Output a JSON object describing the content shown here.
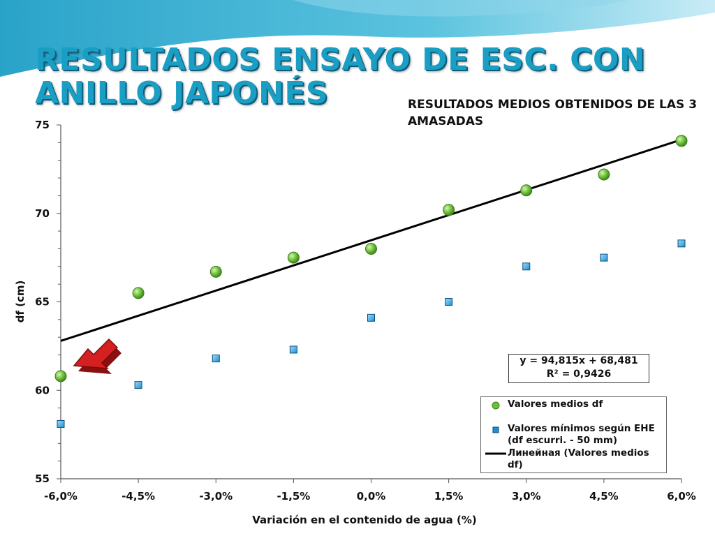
{
  "slide": {
    "title": "RESULTADOS ENSAYO DE ESC. CON ANILLO JAPONÉS",
    "subtitle": "RESULTADOS MEDIOS OBTENIDOS DE LAS 3 AMASADAS"
  },
  "colors": {
    "title": "#1a9ec4",
    "series_means": "#6cbf3a",
    "series_min": "#1e8fd0",
    "trendline": "#000000",
    "arrow": "#c01818"
  },
  "chart_data": {
    "type": "scatter",
    "xlabel": "Variación en el contenido de agua (%)",
    "ylabel": "df (cm)",
    "x": [
      -0.06,
      -0.045,
      -0.03,
      -0.015,
      0.0,
      0.015,
      0.03,
      0.045,
      0.06
    ],
    "x_tick_labels": [
      "-6,0%",
      "-4,5%",
      "-3,0%",
      "-1,5%",
      "0,0%",
      "1,5%",
      "3,0%",
      "4,5%",
      "6,0%"
    ],
    "ylim": [
      55,
      75
    ],
    "y_ticks": [
      55,
      60,
      65,
      70,
      75
    ],
    "grid": false,
    "legend_position": "bottom-right",
    "series": [
      {
        "name": "Valores medios df",
        "marker": "circle",
        "values": [
          60.8,
          65.5,
          66.7,
          67.5,
          68.0,
          70.2,
          71.3,
          72.2,
          74.1
        ]
      },
      {
        "name": "Valores mínimos según EHE (df escurri. - 50 mm)",
        "marker": "square",
        "values": [
          58.1,
          60.3,
          61.8,
          62.3,
          64.1,
          65.0,
          67.0,
          67.5,
          68.3
        ]
      }
    ],
    "trendline": {
      "name": "Линейная (Valores medios df)",
      "slope": 94.815,
      "intercept": 68.481,
      "equation": "y = 94,815x + 68,481",
      "r_squared": "R² = 0,9426"
    }
  },
  "legend": {
    "means": "Valores medios df",
    "min_line1": "Valores mínimos según EHE",
    "min_line2": "(df escurri. - 50 mm)",
    "trend_line1": "Линейная (Valores medios",
    "trend_line2": "df)"
  }
}
